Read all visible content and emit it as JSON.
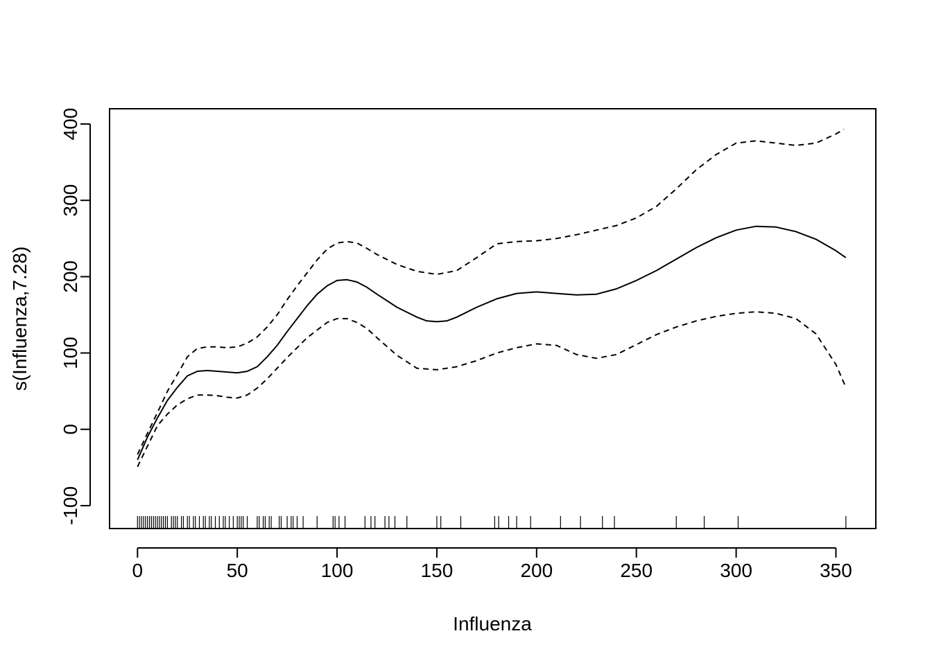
{
  "chart_data": {
    "type": "line",
    "title": "",
    "xlabel": "Influenza",
    "ylabel": "s(Influenza,7.28)",
    "xlim": [
      -14,
      370
    ],
    "ylim": [
      -130,
      420
    ],
    "x_ticks": [
      0,
      50,
      100,
      150,
      200,
      250,
      300,
      350
    ],
    "x_tick_labels": [
      "0",
      "50",
      "100",
      "150",
      "200",
      "250",
      "300",
      "350"
    ],
    "y_ticks": [
      -100,
      0,
      100,
      200,
      300,
      400
    ],
    "y_tick_labels": [
      "-100",
      "0",
      "100",
      "200",
      "300",
      "400"
    ],
    "grid": false,
    "legend": "none",
    "series": [
      {
        "style": "solid",
        "x": [
          0,
          5,
          10,
          15,
          20,
          25,
          30,
          35,
          40,
          45,
          50,
          55,
          60,
          65,
          70,
          75,
          80,
          85,
          90,
          95,
          100,
          105,
          110,
          115,
          120,
          130,
          140,
          145,
          150,
          155,
          160,
          170,
          180,
          190,
          200,
          210,
          220,
          230,
          240,
          250,
          260,
          270,
          280,
          290,
          300,
          310,
          320,
          330,
          340,
          350,
          355
        ],
        "y": [
          -40,
          -10,
          15,
          38,
          55,
          70,
          76,
          77,
          76,
          75,
          74,
          76,
          82,
          95,
          110,
          128,
          145,
          162,
          177,
          188,
          195,
          196,
          193,
          186,
          177,
          160,
          147,
          142,
          141,
          142,
          147,
          160,
          171,
          178,
          180,
          178,
          176,
          177,
          184,
          195,
          208,
          223,
          238,
          251,
          261,
          266,
          265,
          259,
          249,
          234,
          225
        ]
      },
      {
        "style": "dashed",
        "x": [
          0,
          5,
          10,
          15,
          20,
          25,
          30,
          35,
          40,
          45,
          50,
          55,
          60,
          65,
          70,
          75,
          80,
          85,
          90,
          95,
          100,
          105,
          110,
          115,
          120,
          130,
          140,
          150,
          160,
          170,
          180,
          190,
          200,
          210,
          220,
          230,
          240,
          250,
          260,
          270,
          280,
          290,
          300,
          310,
          320,
          330,
          340,
          350,
          354
        ],
        "y": [
          -33,
          -5,
          22,
          50,
          72,
          95,
          106,
          108,
          108,
          107,
          108,
          113,
          121,
          134,
          150,
          170,
          188,
          205,
          222,
          236,
          244,
          246,
          244,
          237,
          229,
          216,
          207,
          203,
          208,
          225,
          243,
          246,
          247,
          250,
          255,
          261,
          267,
          277,
          292,
          315,
          340,
          360,
          375,
          378,
          375,
          372,
          375,
          387,
          393
        ]
      },
      {
        "style": "dashed",
        "x": [
          0,
          5,
          10,
          15,
          20,
          25,
          30,
          35,
          40,
          45,
          50,
          55,
          60,
          65,
          70,
          75,
          80,
          85,
          90,
          95,
          100,
          105,
          110,
          115,
          120,
          130,
          140,
          150,
          160,
          170,
          180,
          190,
          200,
          210,
          220,
          230,
          240,
          250,
          260,
          270,
          280,
          290,
          300,
          310,
          320,
          330,
          340,
          350,
          355
        ],
        "y": [
          -49,
          -22,
          5,
          20,
          32,
          40,
          45,
          45,
          44,
          42,
          41,
          45,
          54,
          66,
          80,
          94,
          107,
          120,
          130,
          140,
          145,
          145,
          140,
          132,
          120,
          97,
          80,
          78,
          82,
          90,
          100,
          107,
          112,
          110,
          98,
          93,
          98,
          111,
          124,
          134,
          142,
          148,
          152,
          154,
          152,
          145,
          125,
          85,
          55
        ]
      }
    ],
    "rug": [
      0,
      1,
      2,
      3,
      4,
      5,
      6,
      7,
      8,
      9,
      10,
      11,
      12,
      13,
      14,
      15,
      17,
      18,
      19,
      20,
      22,
      23,
      25,
      26,
      28,
      29,
      31,
      33,
      34,
      36,
      37,
      39,
      41,
      43,
      44,
      46,
      48,
      50,
      51,
      52,
      53,
      55,
      60,
      61,
      63,
      64,
      66,
      67,
      71,
      72,
      75,
      77,
      78,
      80,
      83,
      90,
      98,
      99,
      101,
      104,
      114,
      117,
      119,
      124,
      126,
      129,
      135,
      150,
      152,
      162,
      179,
      181,
      186,
      190,
      197,
      212,
      222,
      233,
      239,
      270,
      284,
      301,
      355
    ]
  }
}
